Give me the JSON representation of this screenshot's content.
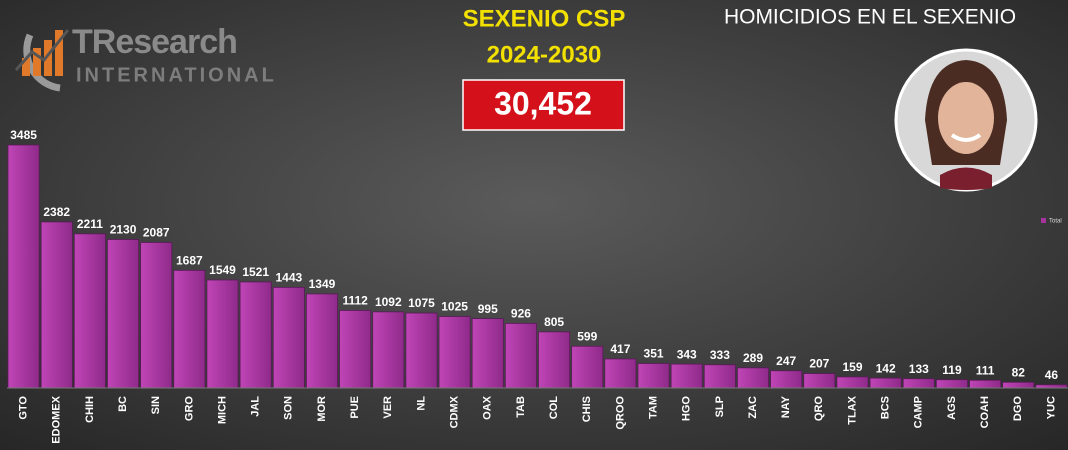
{
  "header": {
    "logo_brand": "TResearch",
    "logo_sub": "INTERNATIONAL",
    "line1": "SEXENIO CSP",
    "line2": "2024-2030",
    "total": "30,452"
  },
  "chart_data": {
    "type": "bar",
    "title": "HOMICIDIOS EN EL SEXENIO",
    "categories": [
      "GTO",
      "EDOMEX",
      "CHIH",
      "BC",
      "SIN",
      "GRO",
      "MICH",
      "JAL",
      "SON",
      "MOR",
      "PUE",
      "VER",
      "NL",
      "CDMX",
      "OAX",
      "TAB",
      "COL",
      "CHIS",
      "QROO",
      "TAM",
      "HGO",
      "SLP",
      "ZAC",
      "NAY",
      "QRO",
      "TLAX",
      "BCS",
      "CAMP",
      "AGS",
      "COAH",
      "DGO",
      "YUC"
    ],
    "series": [
      {
        "name": "Total",
        "color": "#a8329e",
        "values": [
          3485,
          2382,
          2211,
          2130,
          2087,
          1687,
          1549,
          1521,
          1443,
          1349,
          1112,
          1092,
          1075,
          1025,
          995,
          926,
          805,
          599,
          417,
          351,
          343,
          333,
          289,
          247,
          207,
          159,
          142,
          133,
          119,
          111,
          82,
          46
        ]
      }
    ],
    "legend": "right"
  }
}
